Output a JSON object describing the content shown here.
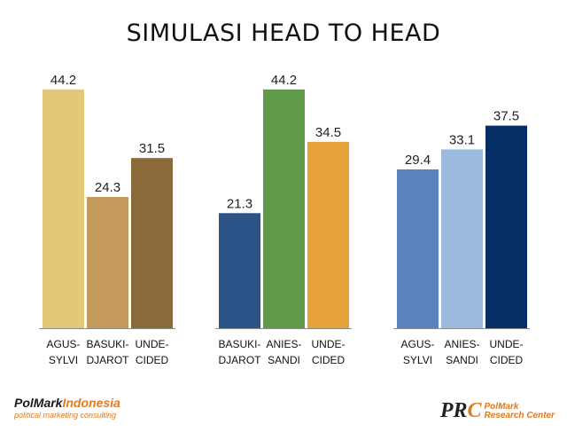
{
  "title": "SIMULASI HEAD TO HEAD",
  "chart_data": [
    {
      "type": "bar",
      "categories": [
        [
          "AGUS-",
          "SYLVI"
        ],
        [
          "BASUKI-",
          "DJAROT"
        ],
        [
          "UNDE-",
          "CIDED"
        ]
      ],
      "values": [
        44.2,
        24.3,
        31.5
      ],
      "value_labels": [
        "44.2",
        "24.3",
        "31.5"
      ],
      "colors": [
        "#e2c878",
        "#c39a5a",
        "#8b6a3a"
      ],
      "ylim": [
        0,
        50
      ],
      "grid": false
    },
    {
      "type": "bar",
      "categories": [
        [
          "BASUKI-",
          "DJAROT"
        ],
        [
          "ANIES-",
          "SANDI"
        ],
        [
          "UNDE-",
          "CIDED"
        ]
      ],
      "values": [
        21.3,
        44.2,
        34.5
      ],
      "value_labels": [
        "21.3",
        "44.2",
        "34.5"
      ],
      "colors": [
        "#2d5488",
        "#5e9a48",
        "#e6a23a"
      ],
      "ylim": [
        0,
        50
      ],
      "grid": false
    },
    {
      "type": "bar",
      "categories": [
        [
          "AGUS-",
          "SYLVI"
        ],
        [
          "ANIES-",
          "SANDI"
        ],
        [
          "UNDE-",
          "CIDED"
        ]
      ],
      "values": [
        29.4,
        33.1,
        37.5
      ],
      "value_labels": [
        "29.4",
        "33.1",
        "37.5"
      ],
      "colors": [
        "#5a82bb",
        "#9bbcde",
        "#062f66"
      ],
      "ylim": [
        0,
        50
      ],
      "grid": false
    }
  ],
  "footer": {
    "polmark_brand": "PolMark",
    "polmark_brand_accent": "Indonesia",
    "polmark_tagline": "political marketing consulting",
    "prc_mark": "PR",
    "prc_mark_accent": "C",
    "prc_line1": "PolMark",
    "prc_line2": "Research Center"
  }
}
